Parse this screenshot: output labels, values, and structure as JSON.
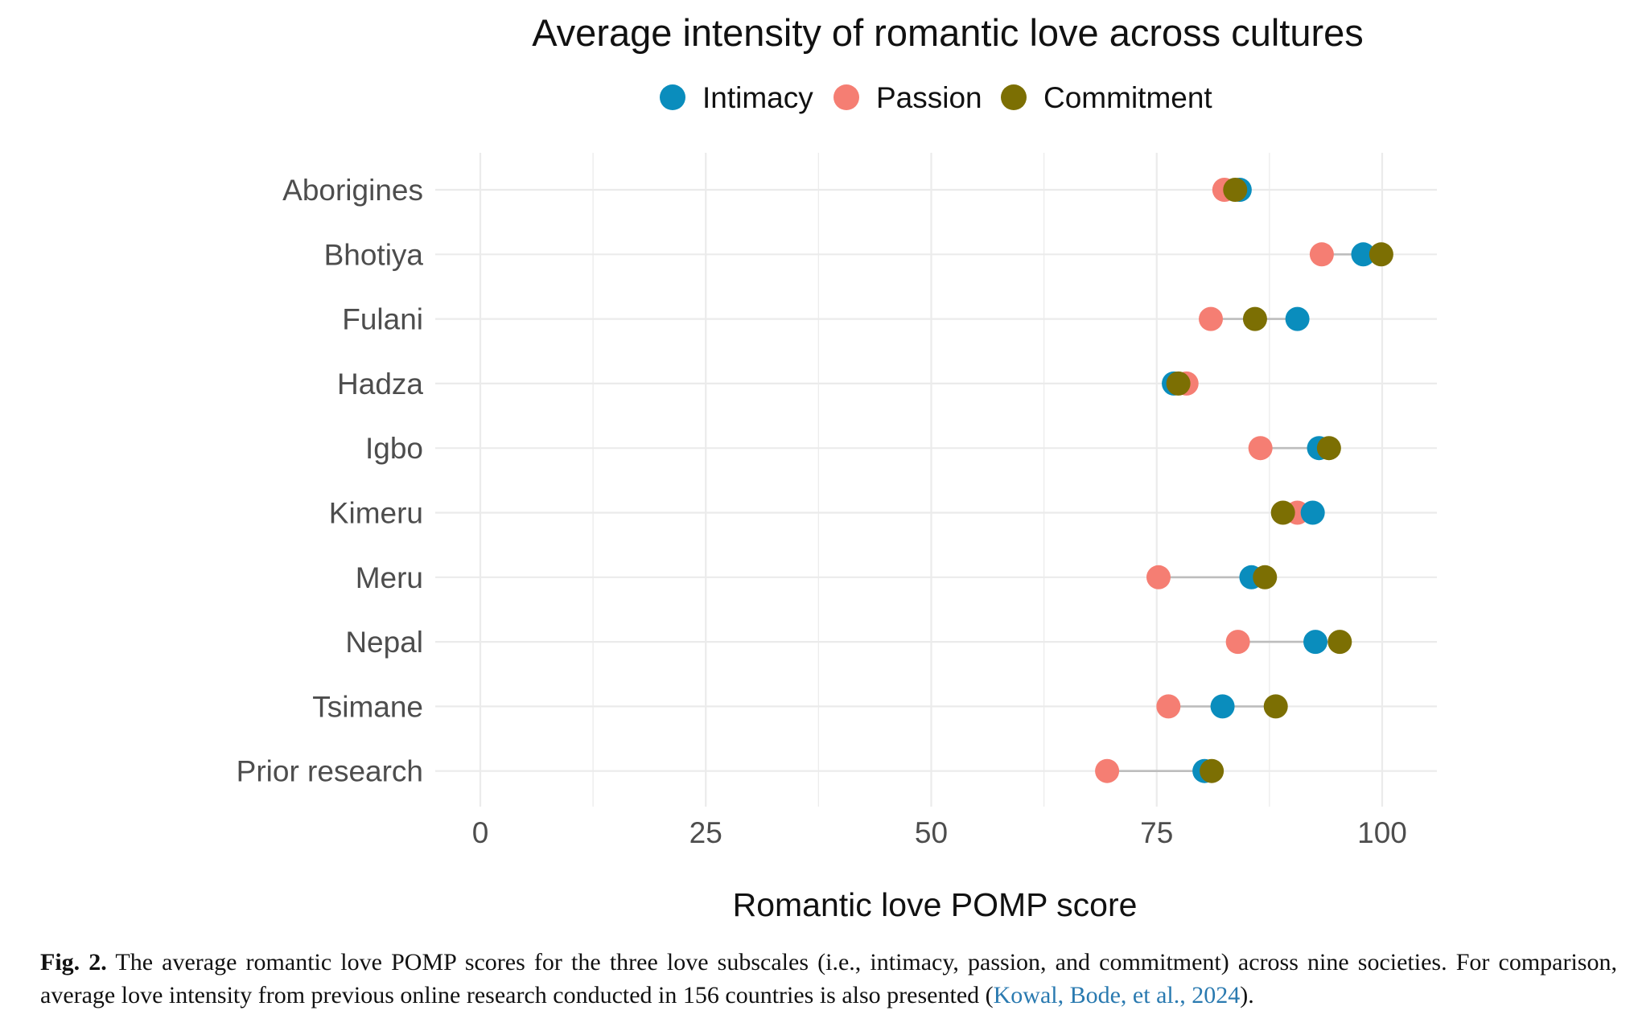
{
  "colors": {
    "intimacy": "#0a8dbd",
    "passion": "#f57e73",
    "commitment": "#7c6f03",
    "segment": "#bdbdbd",
    "grid": "#ebebeb",
    "citation": "#2a7ab0"
  },
  "chart_data": {
    "type": "dumbbell",
    "title": "Average intensity of romantic love across cultures",
    "xlabel": "Romantic love POMP score",
    "ylabel": "",
    "xlim": [
      0,
      106
    ],
    "xticks": [
      "0",
      "25",
      "50",
      "75",
      "100"
    ],
    "xtick_values": [
      0,
      25,
      50,
      75,
      100
    ],
    "grid": true,
    "legend_position": "top",
    "categories": [
      "Aborigines",
      "Bhotiya",
      "Fulani",
      "Hadza",
      "Igbo",
      "Kimeru",
      "Meru",
      "Nepal",
      "Tsimane",
      "Prior research"
    ],
    "series": [
      {
        "name": "Intimacy",
        "color_key": "intimacy",
        "values": [
          84.2,
          97.9,
          90.6,
          76.9,
          93.0,
          92.3,
          85.5,
          92.6,
          82.3,
          80.3
        ]
      },
      {
        "name": "Passion",
        "color_key": "passion",
        "values": [
          82.5,
          93.3,
          81.0,
          78.3,
          86.5,
          90.6,
          75.2,
          84.0,
          76.3,
          69.5
        ]
      },
      {
        "name": "Commitment",
        "color_key": "commitment",
        "values": [
          83.7,
          99.9,
          85.9,
          77.4,
          94.1,
          89.0,
          87.0,
          95.3,
          88.2,
          81.1
        ]
      }
    ]
  },
  "caption": {
    "label": "Fig. 2.",
    "text": "The average romantic love POMP scores for the three love subscales (i.e., intimacy, passion, and commitment) across nine societies. For comparison, average love intensity from previous online research conducted in 156 countries is also presented (",
    "citation": "Kowal, Bode, et al., 2024",
    "end": ")."
  }
}
